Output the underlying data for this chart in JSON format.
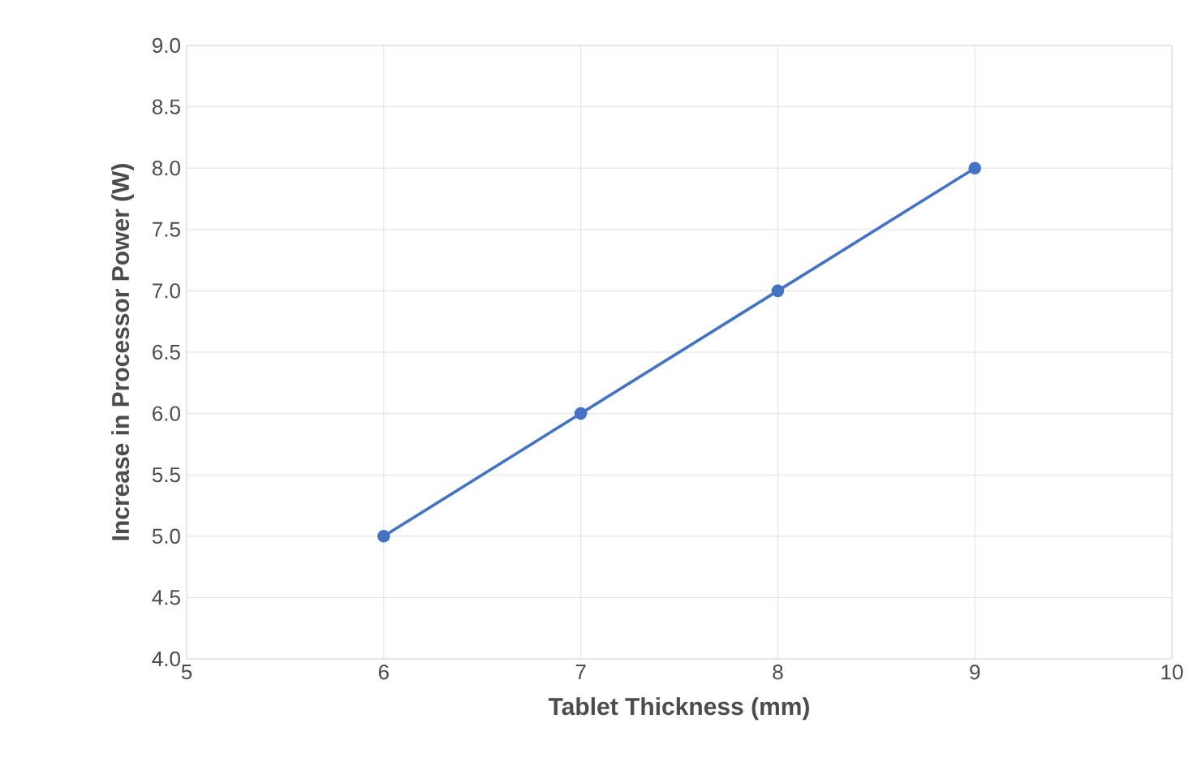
{
  "chart_data": {
    "type": "line",
    "xlabel": "Tablet Thickness (mm)",
    "ylabel": "Increase in Processor Power (W)",
    "x": [
      6,
      7,
      8,
      9
    ],
    "series": [
      {
        "color": "#4472c4",
        "values": [
          5,
          6,
          7,
          8
        ]
      }
    ],
    "xlim": [
      5,
      10
    ],
    "xticks": [
      5,
      6,
      7,
      8,
      9,
      10
    ],
    "ylim": [
      4,
      9
    ],
    "yticks": [
      {
        "value": 4,
        "label": "4.0"
      },
      {
        "value": 4.5,
        "label": "4.5"
      },
      {
        "value": 5,
        "label": "5.0"
      },
      {
        "value": 5.5,
        "label": "5.5"
      },
      {
        "value": 6,
        "label": "6.0"
      },
      {
        "value": 6.5,
        "label": "6.5"
      },
      {
        "value": 7,
        "label": "7.0"
      },
      {
        "value": 7.5,
        "label": "7.5"
      },
      {
        "value": 8,
        "label": "8.0"
      },
      {
        "value": 8.5,
        "label": "8.5"
      },
      {
        "value": 9,
        "label": "9.0"
      }
    ],
    "grid": true,
    "marker": "circle",
    "line_style": "solid"
  }
}
